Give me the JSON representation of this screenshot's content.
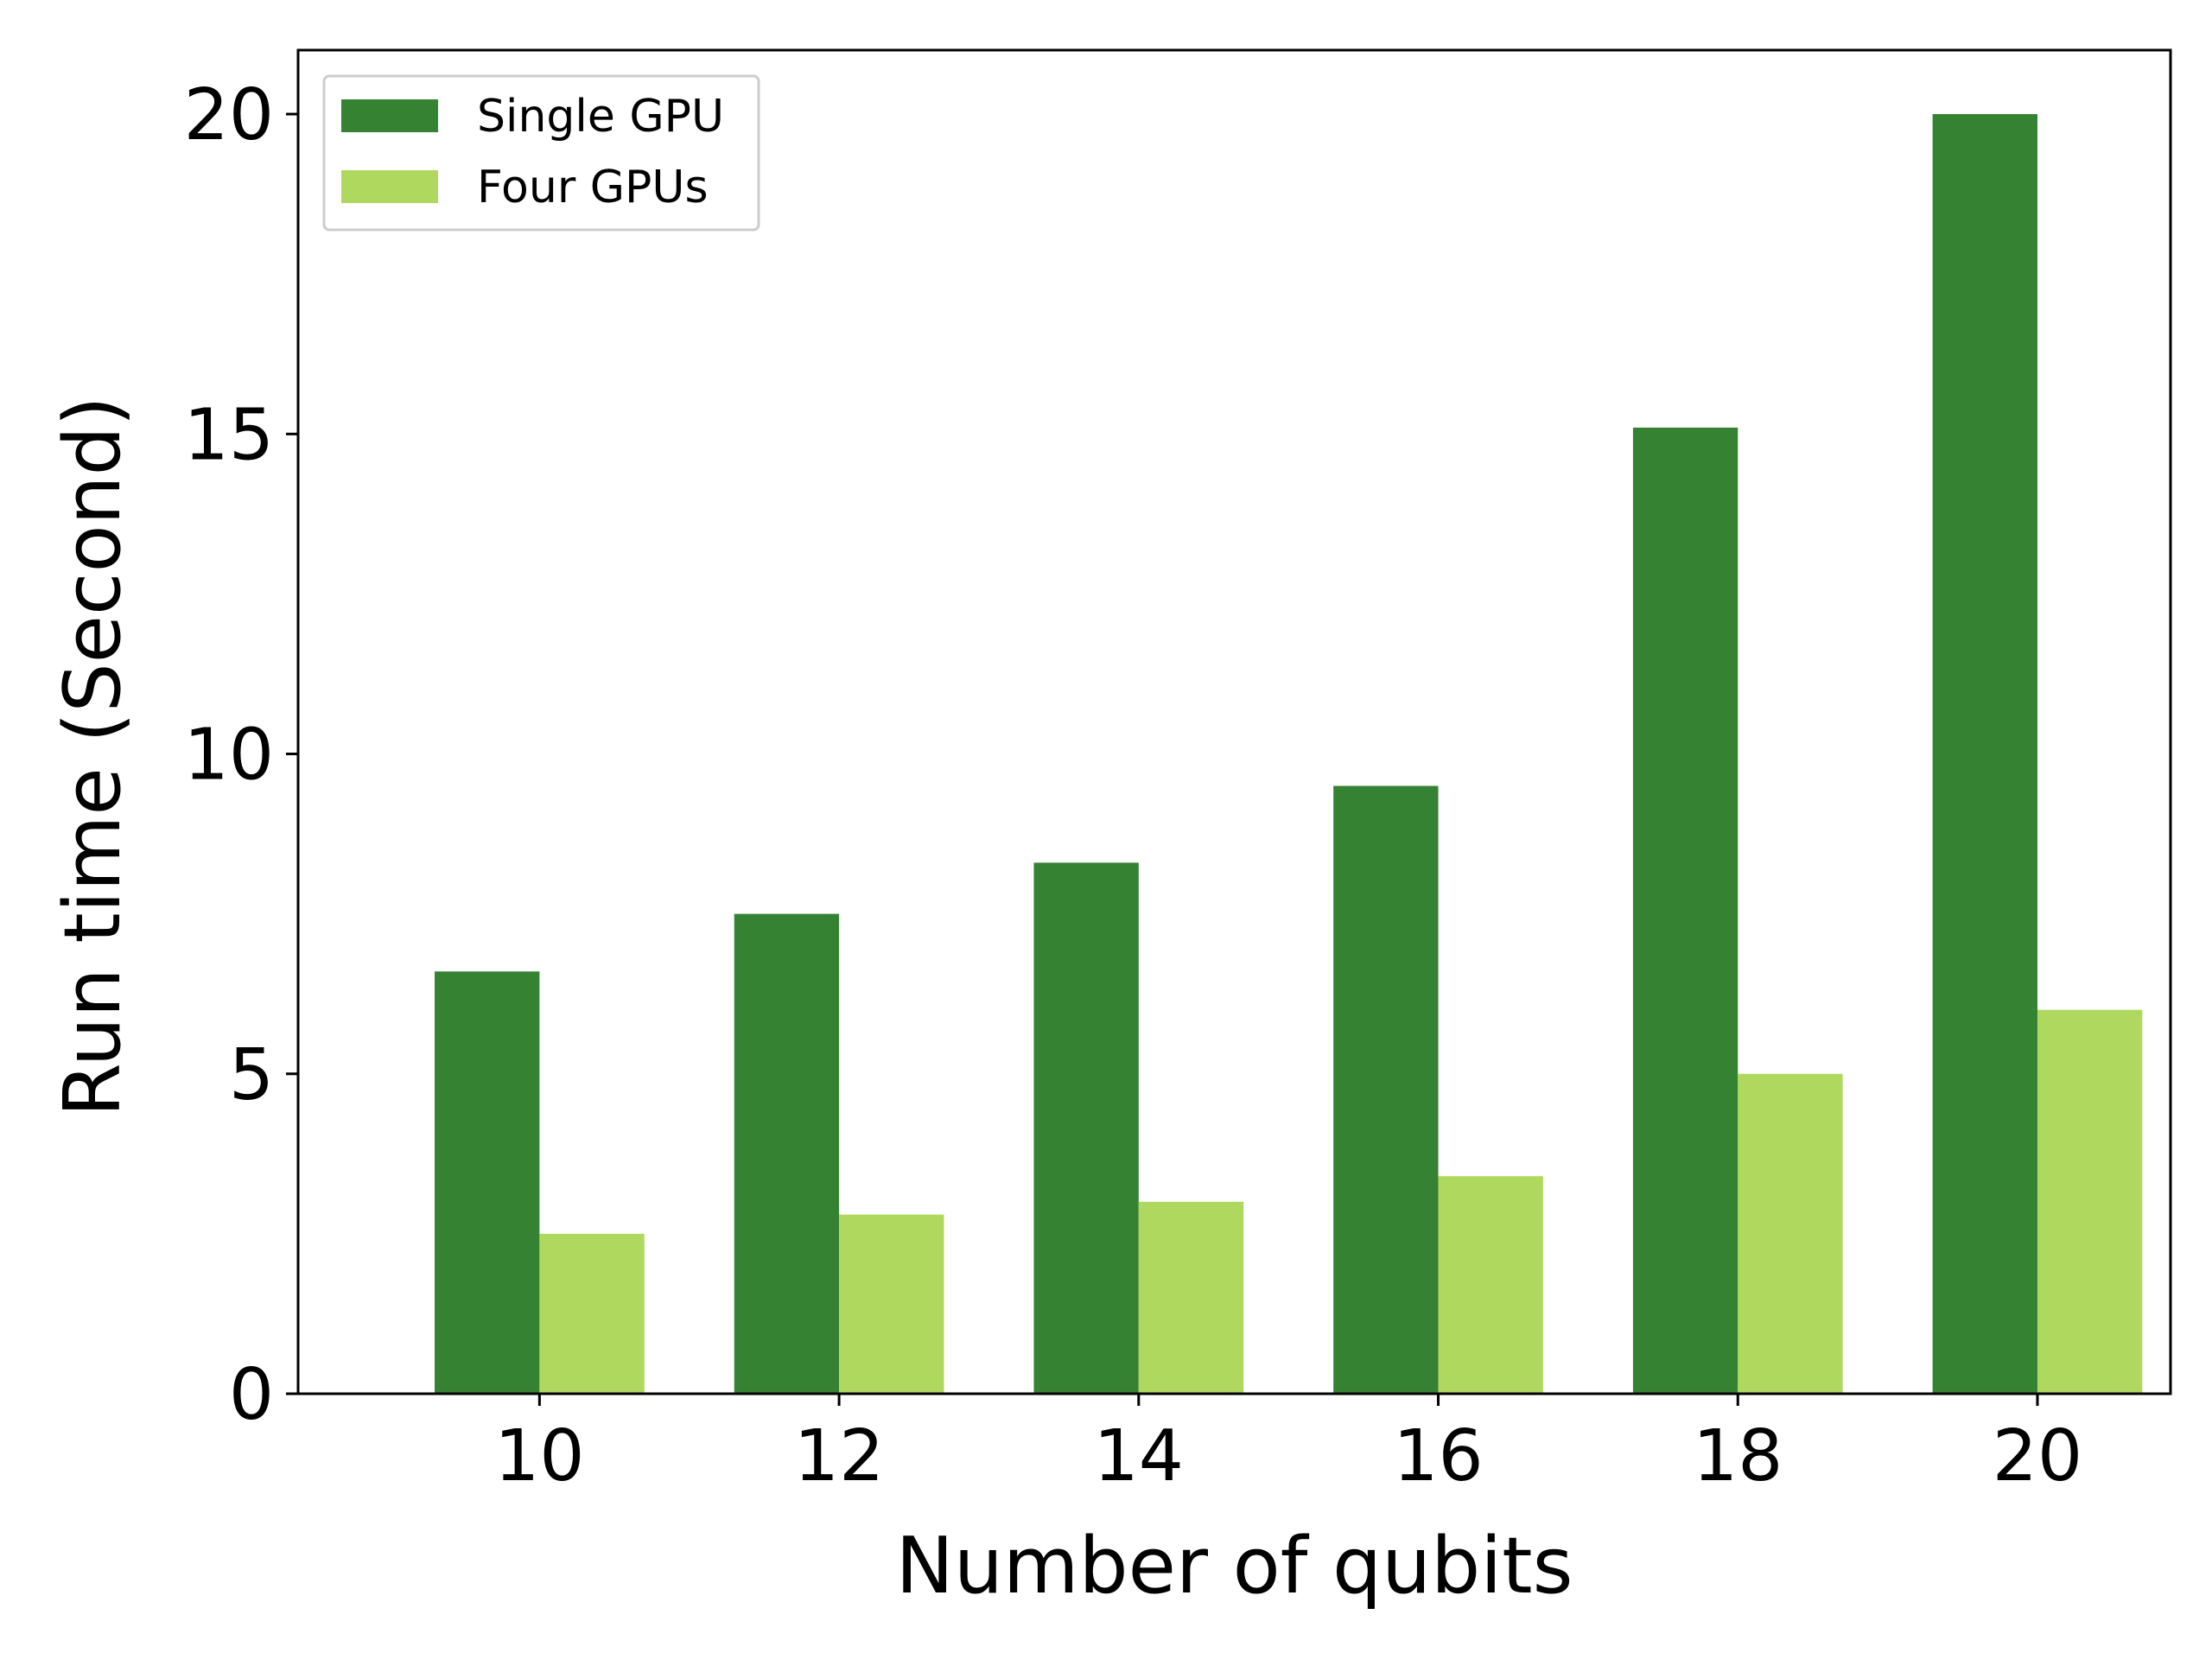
{
  "chart_data": {
    "type": "bar",
    "title": "",
    "xlabel": "Number of qubits",
    "ylabel": "Run time (Second)",
    "categories": [
      "10",
      "12",
      "14",
      "16",
      "18",
      "20"
    ],
    "series": [
      {
        "name": "Single GPU",
        "color": "#358233",
        "values": [
          6.6,
          7.5,
          8.3,
          9.5,
          15.1,
          20.0
        ]
      },
      {
        "name": "Four GPUs",
        "color": "#afd85e",
        "values": [
          2.5,
          2.8,
          3.0,
          3.4,
          5.0,
          6.0
        ]
      }
    ],
    "yticks": [
      "0",
      "5",
      "10",
      "15",
      "20"
    ],
    "ylim": [
      0,
      21
    ],
    "grid": false,
    "legend_position": "top-left"
  }
}
